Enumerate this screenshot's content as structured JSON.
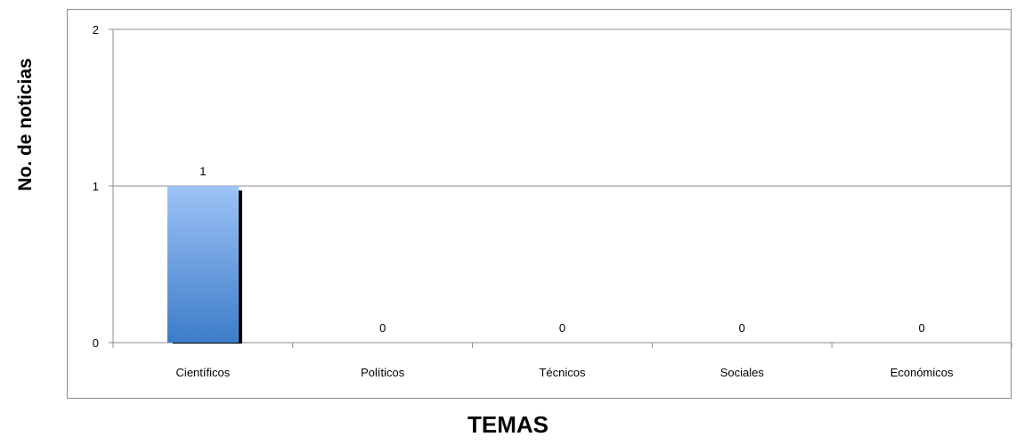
{
  "chart_data": {
    "type": "bar",
    "categories": [
      "Científicos",
      "Políticos",
      "Técnicos",
      "Sociales",
      "Económicos"
    ],
    "values": [
      1,
      0,
      0,
      0,
      0
    ],
    "data_labels": [
      "1",
      "0",
      "0",
      "0",
      "0"
    ],
    "title": "",
    "xlabel": "TEMAS",
    "ylabel": "No. de noticias",
    "ylim": [
      0,
      2
    ],
    "yticks": [
      0,
      1,
      2
    ],
    "grid": true,
    "legend": "none",
    "colors": {
      "bar_top": "#9dc3f7",
      "bar_bottom": "#3d7cc9",
      "bar_shadow": "#000000",
      "gridline": "#8c8c8c",
      "axis": "#8c8c8c",
      "text": "#000000"
    }
  }
}
